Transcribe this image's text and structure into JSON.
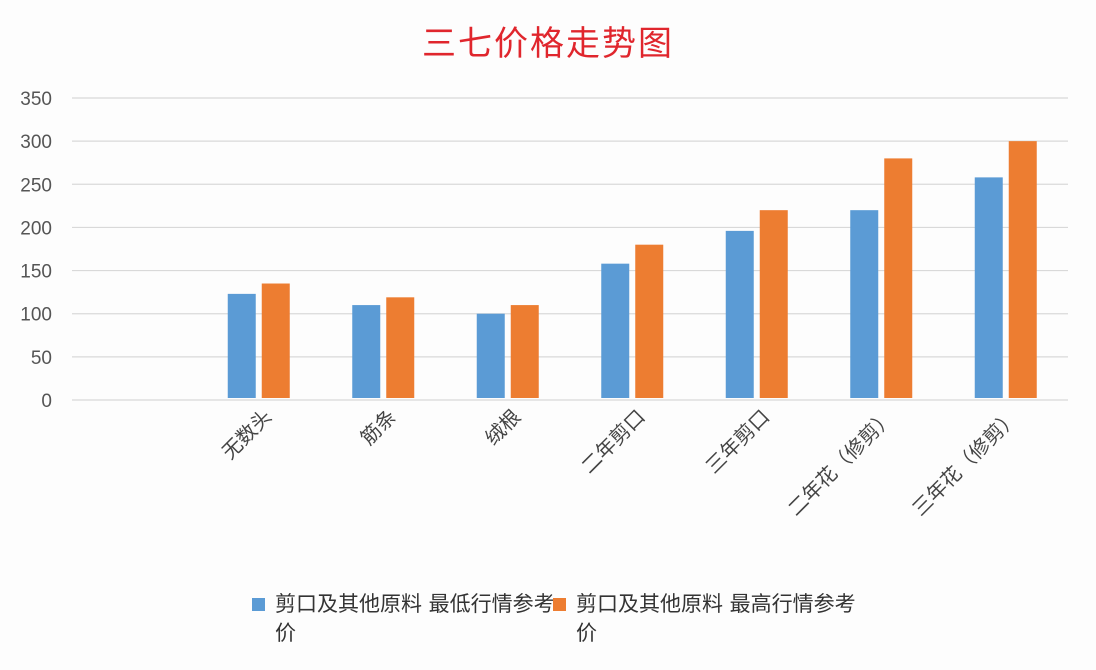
{
  "chart_data": {
    "type": "bar",
    "title": "三七价格走势图",
    "xlabel": "",
    "ylabel": "",
    "ylim": [
      0,
      350
    ],
    "yticks": [
      0,
      50,
      100,
      150,
      200,
      250,
      300,
      350
    ],
    "grid": true,
    "legend_position": "bottom",
    "categories": [
      "",
      "无数头",
      "筋条",
      "绒根",
      "二年剪口",
      "三年剪口",
      "二年花（修剪）",
      "三年花（修剪）"
    ],
    "series": [
      {
        "name": "剪口及其他原料 最低行情参考价",
        "color": "#5b9bd5",
        "values": [
          null,
          123,
          110,
          100,
          158,
          196,
          220,
          258
        ]
      },
      {
        "name": "剪口及其他原料 最高行情参考价",
        "color": "#ed7d31",
        "values": [
          null,
          135,
          119,
          110,
          180,
          220,
          280,
          300
        ]
      }
    ]
  }
}
